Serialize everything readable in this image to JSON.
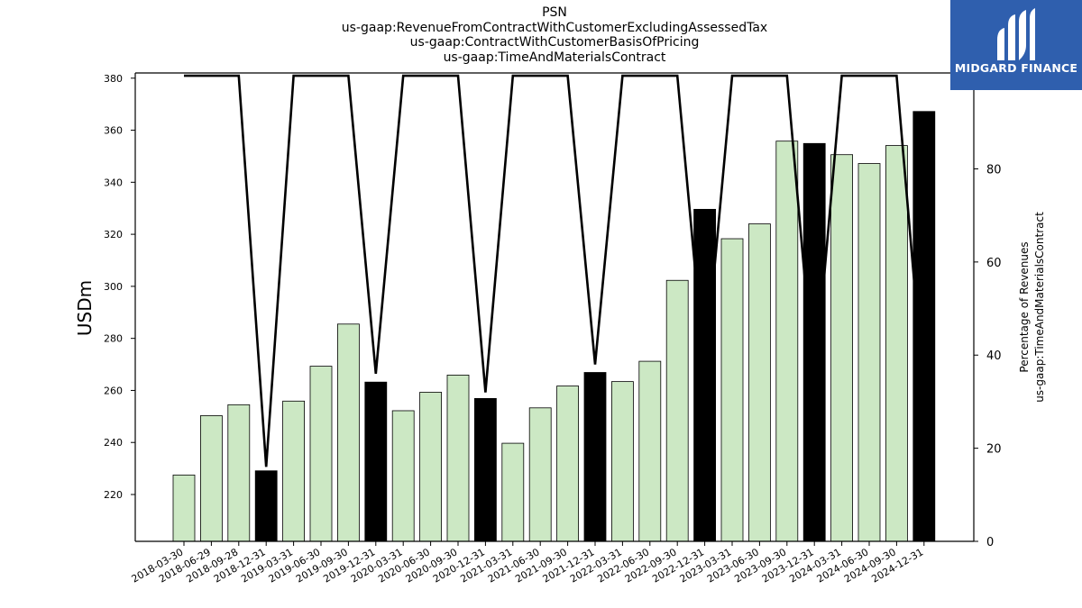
{
  "titles": {
    "line1": "PSN",
    "line2": "us-gaap:RevenueFromContractWithCustomerExcludingAssessedTax",
    "line3": "us-gaap:ContractWithCustomerBasisOfPricing",
    "line4": "us-gaap:TimeAndMaterialsContract"
  },
  "logo": {
    "text": "MIDGARD FINANCE",
    "background": "#2f5fae"
  },
  "colors": {
    "light_bar": "#cce8c4",
    "dark_bar": "#000000",
    "line": "#000000"
  },
  "chart_data": {
    "type": "bar",
    "ylabel": "USDm",
    "y2label": [
      "Percentage of Revenues",
      "us-gaap:TimeAndMaterialsContract"
    ],
    "ylim": [
      202,
      382
    ],
    "yticks": [
      220,
      240,
      260,
      280,
      300,
      320,
      340,
      360,
      380
    ],
    "y2lim": [
      0,
      100.6
    ],
    "y2ticks": [
      0,
      20,
      40,
      60,
      80,
      100
    ],
    "categories": [
      "2018-03-30",
      "2018-06-29",
      "2018-09-28",
      "2018-12-31",
      "2019-03-31",
      "2019-06-30",
      "2019-09-30",
      "2019-12-31",
      "2020-03-31",
      "2020-06-30",
      "2020-09-30",
      "2020-12-31",
      "2021-03-31",
      "2021-06-30",
      "2021-09-30",
      "2021-12-31",
      "2022-03-31",
      "2022-06-30",
      "2022-09-30",
      "2022-12-31",
      "2023-03-31",
      "2023-06-30",
      "2023-09-30",
      "2023-12-31",
      "2024-03-31",
      "2024-06-30",
      "2024-09-30",
      "2024-12-31"
    ],
    "revenue": [
      227.5,
      250.3,
      254.5,
      229.1,
      255.9,
      269.3,
      285.5,
      263.2,
      252.2,
      259.3,
      265.9,
      256.9,
      239.7,
      253.3,
      261.7,
      266.9,
      263.4,
      271.2,
      302.3,
      329.6,
      318.3,
      324.0,
      355.8,
      354.9,
      350.6,
      347.2,
      354.1,
      367.2
    ],
    "annual_quarter": [
      false,
      false,
      false,
      true,
      false,
      false,
      false,
      true,
      false,
      false,
      false,
      true,
      false,
      false,
      false,
      true,
      false,
      false,
      false,
      true,
      false,
      false,
      false,
      true,
      false,
      false,
      false,
      true
    ],
    "time_and_materials_pct": [
      100,
      100,
      100,
      16,
      100,
      100,
      100,
      36,
      100,
      100,
      100,
      32,
      100,
      100,
      100,
      38,
      100,
      100,
      100,
      36,
      100,
      100,
      100,
      33,
      100,
      100,
      100,
      31
    ]
  }
}
